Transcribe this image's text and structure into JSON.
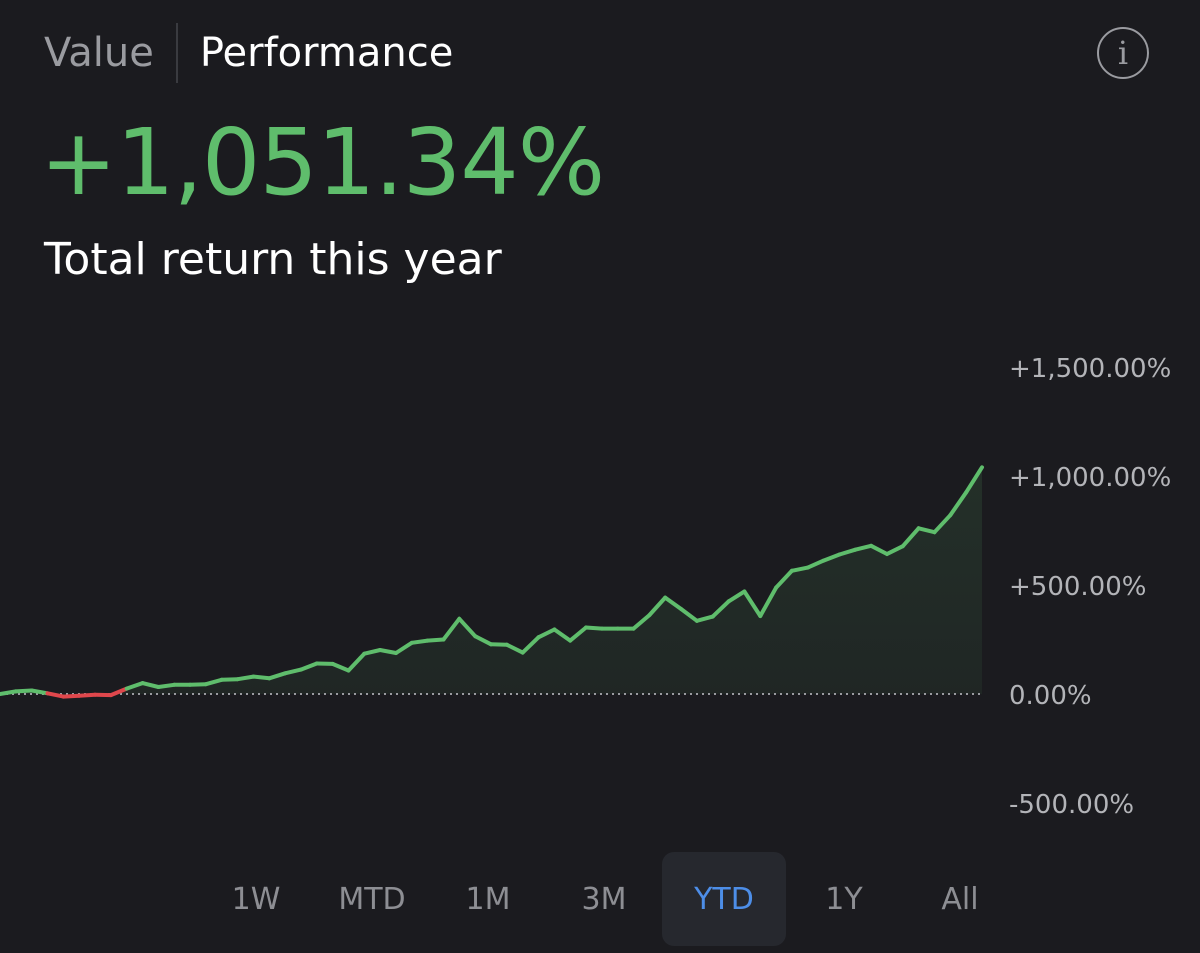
{
  "tabs": [
    {
      "label": "Value",
      "active": false
    },
    {
      "label": "Performance",
      "active": true
    }
  ],
  "info_icon": {
    "name": "info-icon",
    "glyph": "i"
  },
  "summary": {
    "total_return": "+1,051.34%",
    "caption": "Total return this year"
  },
  "colors": {
    "positive": "#5fbd6c",
    "negative": "#e0474c",
    "selected_range": "#4d8ee8",
    "background": "#1b1b1f"
  },
  "time_ranges": {
    "options": [
      "1W",
      "MTD",
      "1M",
      "3M",
      "YTD",
      "1Y",
      "All"
    ],
    "selected": "YTD"
  },
  "chart_data": {
    "type": "area",
    "title": "",
    "xlabel": "",
    "ylabel": "",
    "ylim": [
      -500,
      1500
    ],
    "y_ticks": [
      {
        "value": 1500,
        "label": "+1,500.00%"
      },
      {
        "value": 1000,
        "label": "+1,000.00%"
      },
      {
        "value": 500,
        "label": "+500.00%"
      },
      {
        "value": 0,
        "label": "0.00%"
      },
      {
        "value": -500,
        "label": "-500.00%"
      }
    ],
    "baseline": 0,
    "grid": false,
    "legend": "none",
    "series": [
      {
        "values": [
          0,
          12,
          16,
          3,
          -12,
          -8,
          -3,
          -5,
          25,
          50,
          32,
          42,
          42,
          45,
          65,
          68,
          80,
          72,
          95,
          112,
          140,
          138,
          108,
          185,
          202,
          188,
          235,
          245,
          250,
          345,
          265,
          228,
          226,
          190,
          260,
          296,
          245,
          305,
          300,
          300,
          300,
          362,
          442,
          390,
          336,
          355,
          425,
          470,
          358,
          488,
          565,
          580,
          612,
          640,
          662,
          680,
          642,
          678,
          760,
          742,
          820,
          925,
          1040
        ]
      }
    ]
  }
}
